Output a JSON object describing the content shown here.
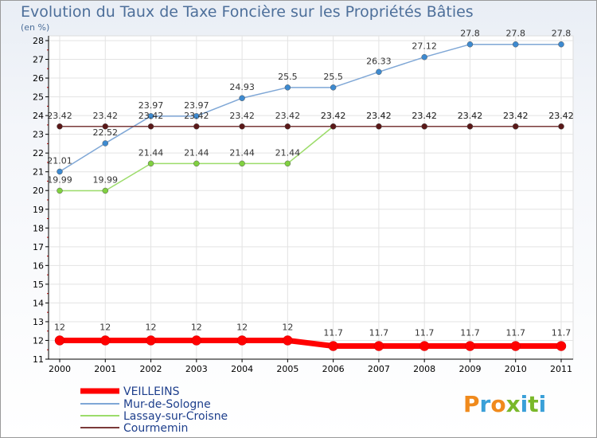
{
  "chart_data": {
    "type": "line",
    "title": "Evolution du Taux de Taxe Foncière sur les Propriétés Bâties",
    "subtitle": "(en %)",
    "x": [
      "2000",
      "2001",
      "2002",
      "2003",
      "2004",
      "2005",
      "2006",
      "2007",
      "2008",
      "2009",
      "2010",
      "2011"
    ],
    "ylim": [
      11,
      28
    ],
    "yticks": [
      "11",
      "12",
      "13",
      "14",
      "15",
      "16",
      "17",
      "18",
      "19",
      "20",
      "21",
      "22",
      "23",
      "24",
      "25",
      "26",
      "27",
      "28"
    ],
    "series": [
      {
        "name": "VEILLEINS",
        "color": "#ff0000",
        "values": [
          12,
          12,
          12,
          12,
          12,
          12,
          11.7,
          11.7,
          11.7,
          11.7,
          11.7,
          11.7
        ],
        "labels": [
          "12",
          "12",
          "12",
          "12",
          "12",
          "12",
          "11.7",
          "11.7",
          "11.7",
          "11.7",
          "11.7",
          "11.7"
        ]
      },
      {
        "name": "Mur-de-Sologne",
        "color": "#7fa7d6",
        "values": [
          21.01,
          22.52,
          23.97,
          23.97,
          24.93,
          25.5,
          25.5,
          26.33,
          27.12,
          27.8,
          27.8,
          27.8
        ],
        "labels": [
          "21.01",
          "22.52",
          "23.97",
          "23.97",
          "24.93",
          "25.5",
          "25.5",
          "26.33",
          "27.12",
          "27.8",
          "27.8",
          "27.8"
        ]
      },
      {
        "name": "Lassay-sur-Croisne",
        "color": "#9cdc6a",
        "values": [
          19.99,
          19.99,
          21.44,
          21.44,
          21.44,
          21.44,
          23.42,
          23.42,
          23.42,
          23.42,
          23.42,
          23.42
        ],
        "labels": [
          "19.99",
          "19.99",
          "21.44",
          "21.44",
          "21.44",
          "21.44",
          "23.42",
          "23.42",
          "23.42",
          "23.42",
          "23.42",
          "23.42"
        ]
      },
      {
        "name": "Courmemin",
        "color": "#7a3a3a",
        "values": [
          23.42,
          23.42,
          23.42,
          23.42,
          23.42,
          23.42,
          23.42,
          23.42,
          23.42,
          23.42,
          23.42,
          23.42
        ],
        "labels": [
          "23.42",
          "23.42",
          "23.42",
          "23.42",
          "23.42",
          "23.42",
          "23.42",
          "23.42",
          "23.42",
          "23.42",
          "23.42",
          "23.42"
        ]
      }
    ]
  },
  "logo": {
    "text": "Proxiti",
    "colors": [
      "#f08a1c",
      "#3aa0d8",
      "#f08a1c",
      "#7ab82a",
      "#3aa0d8",
      "#7ab82a",
      "#3aa0d8"
    ]
  }
}
